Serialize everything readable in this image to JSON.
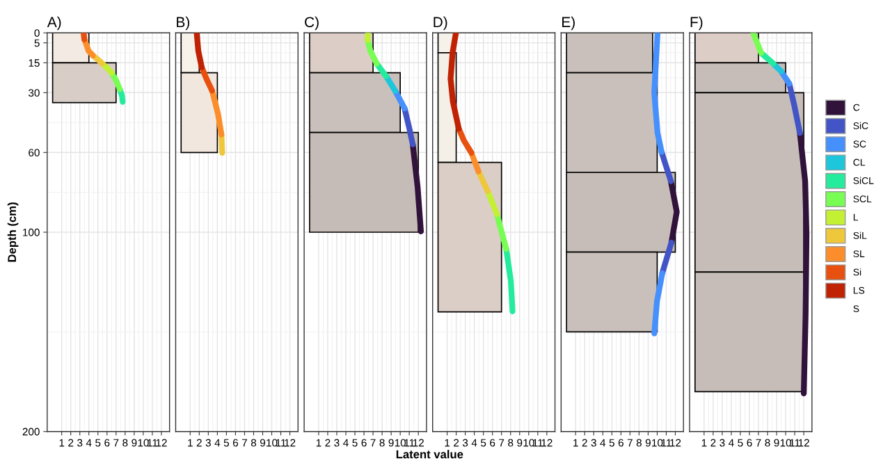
{
  "chart_data": [
    {
      "type": "histogram",
      "orientation": "horizontal",
      "title": "A)",
      "ylabel": "Depth (cm)",
      "legend": "right",
      "bins": [
        0,
        15,
        35
      ],
      "values": [
        4,
        7
      ],
      "colors": [
        "#f3ebe3",
        "#d8cdc7"
      ],
      "xlim": [
        -0.6,
        12.9
      ],
      "xticks": [
        1,
        2,
        3,
        4,
        5,
        6,
        7,
        8,
        9,
        10,
        11,
        12
      ],
      "ylim": [
        200,
        0
      ],
      "yticks": [
        0,
        5,
        15,
        30,
        60,
        100,
        200
      ],
      "grid": true,
      "series": [
        {
          "type": "line",
          "name": "SiCL",
          "color": "#25eb9c",
          "values": [
            7.73,
            7.65,
            7.4
          ],
          "x": [
            34.6,
            31.5,
            28.2
          ]
        },
        {
          "type": "line",
          "name": "SCL",
          "color": "#78fd52",
          "values": [
            7.4,
            7.0,
            6.5
          ],
          "x": [
            28.2,
            23.8,
            20
          ]
        },
        {
          "type": "line",
          "name": "L",
          "color": "#c3f032",
          "values": [
            6.5,
            6.0,
            5.48
          ],
          "x": [
            20,
            17.6,
            15.4
          ]
        },
        {
          "type": "line",
          "name": "SiL",
          "color": "#efc73b",
          "values": [
            5.48,
            5.0,
            4.45
          ],
          "x": [
            15.4,
            13.4,
            11.4
          ]
        },
        {
          "type": "line",
          "name": "SL",
          "color": "#fb8e2b",
          "values": [
            4.45,
            3.97,
            3.7,
            3.5
          ],
          "x": [
            11.4,
            9.1,
            5.6,
            3.3
          ]
        },
        {
          "type": "line",
          "name": "Si",
          "color": "#e8500f",
          "values": [
            3.5,
            3.45,
            3.43
          ],
          "x": [
            3.3,
            1.5,
            0
          ]
        },
        {
          "type": "line",
          "name": "S"
        }
      ]
    },
    {
      "type": "histogram",
      "orientation": "horizontal",
      "title": "B)",
      "tick_labels": "x",
      "legend": "right",
      "bins": [
        0,
        20,
        60
      ],
      "values": [
        2,
        4
      ],
      "colors": [
        "#f6f1e9",
        "#f1e7de"
      ],
      "xlim": [
        -0.6,
        12.9
      ],
      "xticks": [
        1,
        2,
        3,
        4,
        5,
        6,
        7,
        8,
        9,
        10,
        11,
        12
      ],
      "ylim": [
        200,
        0
      ],
      "yticks": [
        0,
        5,
        15,
        30,
        60,
        100,
        200
      ],
      "grid": true,
      "series": [
        {
          "type": "line",
          "name": "SiL",
          "color": "#efc73b",
          "values": [
            4.53,
            4.45
          ],
          "x": [
            60.2,
            51
          ]
        },
        {
          "type": "line",
          "name": "SL",
          "color": "#fb8e2b",
          "values": [
            4.45,
            4.06,
            3.42
          ],
          "x": [
            51,
            40.4,
            29
          ]
        },
        {
          "type": "line",
          "name": "Si",
          "color": "#e8500f",
          "values": [
            3.42,
            2.79,
            2.27
          ],
          "x": [
            29,
            23.0,
            17.2
          ]
        },
        {
          "type": "line",
          "name": "LS",
          "color": "#bf2303",
          "values": [
            2.27,
            1.9,
            1.72
          ],
          "x": [
            17.2,
            9.1,
            0
          ]
        }
      ]
    },
    {
      "type": "histogram",
      "orientation": "horizontal",
      "title": "C)",
      "xlabel": "Latent value",
      "tick_labels": "x",
      "legend": "right",
      "bins": [
        0,
        20,
        50,
        100
      ],
      "values": [
        7,
        10,
        12
      ],
      "colors": [
        "#dccec7",
        "#cac0bb",
        "#c6bcb7"
      ],
      "xlim": [
        -0.6,
        12.9
      ],
      "xticks": [
        1,
        2,
        3,
        4,
        5,
        6,
        7,
        8,
        9,
        10,
        11,
        12
      ],
      "ylim": [
        200,
        0
      ],
      "yticks": [
        0,
        5,
        15,
        30,
        60,
        100,
        200
      ],
      "grid": true,
      "series": [
        {
          "type": "line",
          "name": "C",
          "color": "#30123b",
          "values": [
            12.28,
            11.92,
            11.38
          ],
          "x": [
            99.6,
            77.4,
            55.9
          ]
        },
        {
          "type": "line",
          "name": "SiC",
          "color": "#4355c6",
          "values": [
            11.38,
            10.97,
            10.48
          ],
          "x": [
            55.9,
            47.2,
            37.9
          ]
        },
        {
          "type": "line",
          "name": "SC",
          "color": "#4590fc",
          "values": [
            10.48,
            9.46
          ],
          "x": [
            37.9,
            29.2
          ]
        },
        {
          "type": "line",
          "name": "CL",
          "color": "#1ec6dc",
          "values": [
            9.46,
            8.43
          ],
          "x": [
            29.2,
            21.7
          ]
        },
        {
          "type": "line",
          "name": "SiCL",
          "color": "#25eb9c",
          "values": [
            8.43,
            7.4
          ],
          "x": [
            21.7,
            15.4
          ]
        },
        {
          "type": "line",
          "name": "SCL",
          "color": "#78fd52",
          "values": [
            7.4,
            6.71,
            6.4
          ],
          "x": [
            15.4,
            9.1,
            3.5
          ]
        },
        {
          "type": "line",
          "name": "L",
          "color": "#c3f032",
          "values": [
            6.4,
            6.45
          ],
          "x": [
            3.5,
            0
          ]
        }
      ]
    },
    {
      "type": "histogram",
      "orientation": "horizontal",
      "title": "D)",
      "tick_labels": "x",
      "legend": "right",
      "bins": [
        0,
        10,
        65,
        140
      ],
      "values": [
        1.75,
        2,
        7
      ],
      "colors": [
        "#f6f1e9",
        "#f5f0e7",
        "#dbcec6"
      ],
      "xlim": [
        -0.6,
        12.9
      ],
      "xticks": [
        1,
        2,
        3,
        4,
        5,
        6,
        7,
        8,
        9,
        10,
        11,
        12
      ],
      "ylim": [
        200,
        0
      ],
      "yticks": [
        0,
        5,
        15,
        30,
        60,
        100,
        200
      ],
      "grid": true,
      "series": [
        {
          "type": "line",
          "name": "SiCL",
          "color": "#25eb9c",
          "values": [
            8.21,
            8.03,
            7.52
          ],
          "x": [
            139.7,
            124.6,
            108.4
          ]
        },
        {
          "type": "line",
          "name": "SCL",
          "color": "#78fd52",
          "values": [
            7.52,
            7.0,
            6.5
          ],
          "x": [
            108.4,
            99.7,
            91
          ]
        },
        {
          "type": "line",
          "name": "L",
          "color": "#c3f032",
          "values": [
            6.5,
            5.47
          ],
          "x": [
            91,
            79.4
          ]
        },
        {
          "type": "line",
          "name": "SiL",
          "color": "#efc73b",
          "values": [
            5.47,
            4.45
          ],
          "x": [
            79.4,
            69.5
          ]
        },
        {
          "type": "line",
          "name": "SL",
          "color": "#fb8e2b",
          "values": [
            4.45,
            3.68
          ],
          "x": [
            69.5,
            60.2
          ]
        },
        {
          "type": "line",
          "name": "Si",
          "color": "#e8500f",
          "values": [
            3.68,
            2.85,
            2.28
          ],
          "x": [
            60.2,
            54,
            48
          ]
        },
        {
          "type": "line",
          "name": "LS",
          "color": "#bf2303",
          "values": [
            2.28,
            1.64,
            1.38,
            1.6,
            1.97
          ],
          "x": [
            48,
            34.6,
            23.0,
            10,
            0
          ]
        }
      ]
    },
    {
      "type": "histogram",
      "orientation": "horizontal",
      "title": "E)",
      "tick_labels": "x",
      "legend": "right",
      "bins": [
        0,
        20,
        70,
        110,
        150
      ],
      "values": [
        9.5,
        10,
        12,
        10
      ],
      "colors": [
        "#c9c0bb",
        "#c9c0bb",
        "#c6bdb8",
        "#c9c0bb"
      ],
      "xlim": [
        -0.6,
        12.9
      ],
      "xticks": [
        1,
        2,
        3,
        4,
        5,
        6,
        7,
        8,
        9,
        10,
        11,
        12
      ],
      "ylim": [
        200,
        0
      ],
      "yticks": [
        0,
        5,
        15,
        30,
        60,
        100,
        200
      ],
      "grid": true,
      "series": [
        {
          "type": "line",
          "name": "C",
          "color": "#30123b",
          "values": [
            11.51,
            12.16,
            11.57
          ],
          "x": [
            74.4,
            89.8,
            105.2
          ]
        },
        {
          "type": "line",
          "name": "SiC",
          "color": "#4355c6",
          "values": [
            10.48,
            11.51
          ],
          "x": [
            59.7,
            74.4
          ]
        },
        {
          "type": "line",
          "name": "SiC",
          "color": "#4355c6",
          "values": [
            11.57,
            10.56
          ],
          "x": [
            105.2,
            120.6
          ]
        },
        {
          "type": "line",
          "name": "SC",
          "color": "#4590fc",
          "values": [
            10.04,
            9.68,
            10.04,
            10.48
          ],
          "x": [
            0,
            30.1,
            50.2,
            59.7
          ]
        },
        {
          "type": "line",
          "name": "SC",
          "color": "#4590fc",
          "values": [
            10.56,
            9.98,
            9.68
          ],
          "x": [
            120.6,
            134.6,
            150.8
          ]
        }
      ]
    },
    {
      "type": "histogram",
      "orientation": "horizontal",
      "title": "F)",
      "tick_labels": "x",
      "legend": "right",
      "bins": [
        0,
        15,
        30,
        120,
        180
      ],
      "values": [
        7,
        10,
        12,
        12
      ],
      "colors": [
        "#dccec7",
        "#c6bdb8",
        "#c6bdb8",
        "#c6bdb8"
      ],
      "xlim": [
        -0.6,
        12.9
      ],
      "xticks": [
        1,
        2,
        3,
        4,
        5,
        6,
        7,
        8,
        9,
        10,
        11,
        12
      ],
      "ylim": [
        200,
        0
      ],
      "yticks": [
        0,
        5,
        15,
        30,
        60,
        100,
        200
      ],
      "grid": true,
      "series": [
        {
          "type": "line",
          "name": "C",
          "color": "#30123b",
          "values": [
            11.57,
            12.15,
            12.3,
            12.2,
            12.0
          ],
          "x": [
            50.2,
            74.4,
            101.2,
            141.4,
            180.9
          ]
        },
        {
          "type": "line",
          "name": "SiC",
          "color": "#4355c6",
          "values": [
            10.4,
            10.97,
            11.57
          ],
          "x": [
            25.5,
            36.8,
            50.2
          ]
        },
        {
          "type": "line",
          "name": "SC",
          "color": "#4590fc",
          "values": [
            9.52,
            10.4
          ],
          "x": [
            19.4,
            25.5
          ]
        },
        {
          "type": "line",
          "name": "CL",
          "color": "#1ec6dc",
          "values": [
            8.63,
            9.52
          ],
          "x": [
            15.4,
            19.4
          ]
        },
        {
          "type": "line",
          "name": "SiCL",
          "color": "#25eb9c",
          "values": [
            7.3,
            8.63
          ],
          "x": [
            10.1,
            15.4
          ]
        },
        {
          "type": "line",
          "name": "SCL",
          "color": "#78fd52",
          "values": [
            6.41,
            7.3
          ],
          "x": [
            0,
            10.1
          ]
        }
      ]
    }
  ]
}
